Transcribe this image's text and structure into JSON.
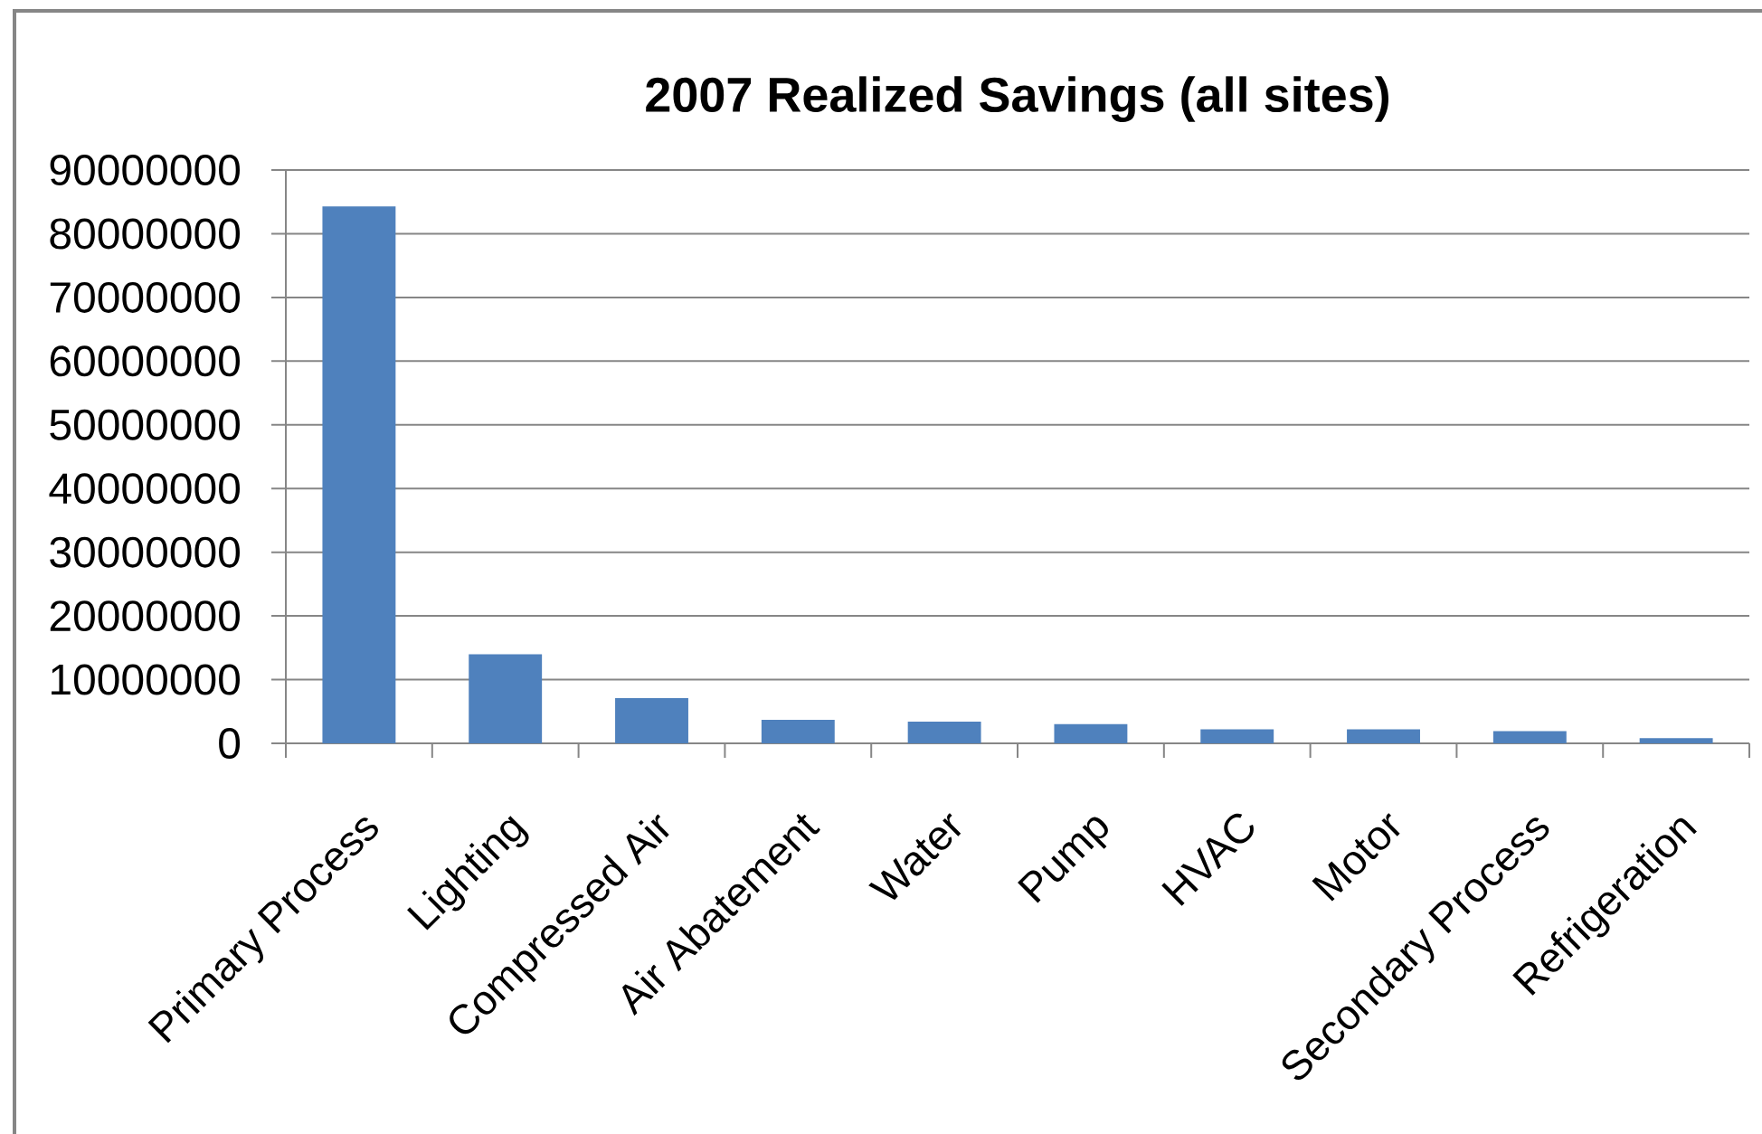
{
  "chart_data": {
    "type": "bar",
    "title": "2007 Realized Savings (all sites)",
    "categories": [
      "Primary Process",
      "Lighting",
      "Compressed Air",
      "Air Abatement",
      "Water",
      "Pump",
      "HVAC",
      "Motor",
      "Secondary Process",
      "Refrigeration"
    ],
    "values": [
      84300000,
      14000000,
      7100000,
      3700000,
      3400000,
      3000000,
      2200000,
      2200000,
      1900000,
      800000
    ],
    "color": "#4f81bd",
    "ylim": [
      0,
      90000000
    ],
    "yticks": [
      0,
      10000000,
      20000000,
      30000000,
      40000000,
      50000000,
      60000000,
      70000000,
      80000000,
      90000000
    ],
    "grid": "y"
  }
}
